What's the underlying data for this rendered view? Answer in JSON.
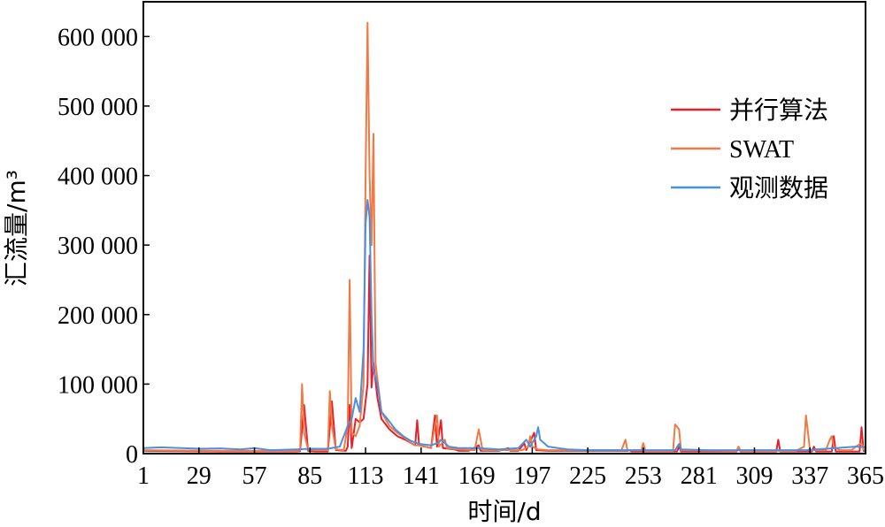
{
  "chart_data": {
    "type": "line",
    "title": "",
    "xlabel": "时间/d",
    "ylabel": "汇流量/m³",
    "xlim": [
      1,
      365
    ],
    "ylim": [
      0,
      650000
    ],
    "x_ticks": [
      1,
      29,
      57,
      85,
      113,
      141,
      169,
      197,
      225,
      253,
      281,
      309,
      337,
      365
    ],
    "x_tick_labels": [
      "1",
      "29",
      "57",
      "85",
      "113",
      "141",
      "169",
      "197",
      "225",
      "253",
      "281",
      "309",
      "337",
      "365"
    ],
    "y_ticks": [
      0,
      100000,
      200000,
      300000,
      400000,
      500000,
      600000
    ],
    "y_tick_labels": [
      "0",
      "100 000",
      "200 000",
      "300 000",
      "400 000",
      "500 000",
      "600 000"
    ],
    "grid": false,
    "legend_position": "top-right",
    "series": [
      {
        "name": "并行算法",
        "color": "#e8202a",
        "points": [
          [
            1,
            4000
          ],
          [
            20,
            3500
          ],
          [
            40,
            3000
          ],
          [
            60,
            3000
          ],
          [
            78,
            3000
          ],
          [
            80,
            3500
          ],
          [
            82,
            70000
          ],
          [
            84,
            4000
          ],
          [
            88,
            3000
          ],
          [
            94,
            3000
          ],
          [
            96,
            75000
          ],
          [
            98,
            5000
          ],
          [
            103,
            4000
          ],
          [
            104,
            10000
          ],
          [
            105,
            70000
          ],
          [
            106,
            8000
          ],
          [
            108,
            50000
          ],
          [
            110,
            45000
          ],
          [
            112,
            50000
          ],
          [
            114,
            100000
          ],
          [
            115,
            285000
          ],
          [
            116,
            95000
          ],
          [
            117,
            130000
          ],
          [
            119,
            80000
          ],
          [
            121,
            50000
          ],
          [
            125,
            35000
          ],
          [
            129,
            25000
          ],
          [
            133,
            20000
          ],
          [
            136,
            15000
          ],
          [
            138,
            12000
          ],
          [
            139,
            48000
          ],
          [
            140,
            12000
          ],
          [
            146,
            8000
          ],
          [
            148,
            55000
          ],
          [
            149,
            10000
          ],
          [
            151,
            48000
          ],
          [
            152,
            8000
          ],
          [
            158,
            6000
          ],
          [
            160,
            4000
          ],
          [
            165,
            4000
          ],
          [
            170,
            12000
          ],
          [
            171,
            4000
          ],
          [
            180,
            4000
          ],
          [
            185,
            8000
          ],
          [
            186,
            4000
          ],
          [
            190,
            4000
          ],
          [
            193,
            15000
          ],
          [
            194,
            5000
          ],
          [
            198,
            30000
          ],
          [
            199,
            5000
          ],
          [
            205,
            4000
          ],
          [
            245,
            4000
          ],
          [
            246,
            5000
          ],
          [
            247,
            3000
          ],
          [
            270,
            3000
          ],
          [
            271,
            10000
          ],
          [
            272,
            3000
          ],
          [
            300,
            3000
          ],
          [
            301,
            8000
          ],
          [
            302,
            3000
          ],
          [
            320,
            3000
          ],
          [
            321,
            20000
          ],
          [
            322,
            3000
          ],
          [
            338,
            3000
          ],
          [
            339,
            10000
          ],
          [
            340,
            3000
          ],
          [
            348,
            3000
          ],
          [
            349,
            25000
          ],
          [
            350,
            3000
          ],
          [
            362,
            3000
          ],
          [
            363,
            38000
          ],
          [
            364,
            4000
          ],
          [
            365,
            3000
          ]
        ]
      },
      {
        "name": "SWAT",
        "color": "#f07a45",
        "points": [
          [
            1,
            5000
          ],
          [
            20,
            4500
          ],
          [
            40,
            4000
          ],
          [
            60,
            4000
          ],
          [
            78,
            4000
          ],
          [
            80,
            5000
          ],
          [
            81,
            100000
          ],
          [
            82,
            30000
          ],
          [
            84,
            6000
          ],
          [
            88,
            5000
          ],
          [
            94,
            5000
          ],
          [
            95,
            90000
          ],
          [
            96,
            40000
          ],
          [
            98,
            6000
          ],
          [
            102,
            5000
          ],
          [
            104,
            40000
          ],
          [
            105,
            250000
          ],
          [
            106,
            30000
          ],
          [
            108,
            25000
          ],
          [
            110,
            40000
          ],
          [
            112,
            100000
          ],
          [
            113,
            400000
          ],
          [
            114,
            620000
          ],
          [
            115,
            400000
          ],
          [
            116,
            300000
          ],
          [
            117,
            460000
          ],
          [
            118,
            130000
          ],
          [
            121,
            60000
          ],
          [
            125,
            40000
          ],
          [
            129,
            30000
          ],
          [
            133,
            22000
          ],
          [
            136,
            15000
          ],
          [
            138,
            12000
          ],
          [
            140,
            12000
          ],
          [
            146,
            8000
          ],
          [
            148,
            40000
          ],
          [
            149,
            55000
          ],
          [
            150,
            10000
          ],
          [
            153,
            20000
          ],
          [
            154,
            8000
          ],
          [
            160,
            6000
          ],
          [
            168,
            5000
          ],
          [
            170,
            35000
          ],
          [
            171,
            20000
          ],
          [
            172,
            5000
          ],
          [
            180,
            5000
          ],
          [
            185,
            5000
          ],
          [
            192,
            5000
          ],
          [
            195,
            10000
          ],
          [
            196,
            25000
          ],
          [
            197,
            10000
          ],
          [
            200,
            6000
          ],
          [
            205,
            5000
          ],
          [
            242,
            5000
          ],
          [
            244,
            20000
          ],
          [
            245,
            5000
          ],
          [
            252,
            5000
          ],
          [
            253,
            15000
          ],
          [
            254,
            4000
          ],
          [
            268,
            4000
          ],
          [
            269,
            42000
          ],
          [
            271,
            35000
          ],
          [
            272,
            5000
          ],
          [
            300,
            4000
          ],
          [
            301,
            10000
          ],
          [
            302,
            4000
          ],
          [
            330,
            4000
          ],
          [
            334,
            10000
          ],
          [
            335,
            55000
          ],
          [
            336,
            30000
          ],
          [
            337,
            5000
          ],
          [
            345,
            5000
          ],
          [
            347,
            20000
          ],
          [
            348,
            25000
          ],
          [
            349,
            10000
          ],
          [
            352,
            5000
          ],
          [
            358,
            5000
          ],
          [
            360,
            10000
          ],
          [
            363,
            15000
          ],
          [
            364,
            6000
          ],
          [
            365,
            5000
          ]
        ]
      },
      {
        "name": "观测数据",
        "color": "#4a90e2",
        "points": [
          [
            1,
            8000
          ],
          [
            10,
            9000
          ],
          [
            20,
            8000
          ],
          [
            30,
            7000
          ],
          [
            40,
            7500
          ],
          [
            50,
            6000
          ],
          [
            57,
            8000
          ],
          [
            65,
            5000
          ],
          [
            78,
            6000
          ],
          [
            86,
            7000
          ],
          [
            94,
            7000
          ],
          [
            100,
            10000
          ],
          [
            104,
            40000
          ],
          [
            106,
            50000
          ],
          [
            108,
            80000
          ],
          [
            110,
            60000
          ],
          [
            112,
            150000
          ],
          [
            113,
            330000
          ],
          [
            114,
            365000
          ],
          [
            115,
            340000
          ],
          [
            116,
            200000
          ],
          [
            117,
            120000
          ],
          [
            119,
            100000
          ],
          [
            121,
            60000
          ],
          [
            124,
            50000
          ],
          [
            128,
            35000
          ],
          [
            132,
            25000
          ],
          [
            136,
            18000
          ],
          [
            140,
            14000
          ],
          [
            146,
            12000
          ],
          [
            150,
            16000
          ],
          [
            151,
            20000
          ],
          [
            155,
            10000
          ],
          [
            160,
            8000
          ],
          [
            170,
            8000
          ],
          [
            180,
            6000
          ],
          [
            190,
            8000
          ],
          [
            194,
            20000
          ],
          [
            196,
            10000
          ],
          [
            199,
            25000
          ],
          [
            200,
            38000
          ],
          [
            201,
            20000
          ],
          [
            205,
            10000
          ],
          [
            215,
            6000
          ],
          [
            225,
            5000
          ],
          [
            240,
            5000
          ],
          [
            253,
            5000
          ],
          [
            269,
            5000
          ],
          [
            271,
            14000
          ],
          [
            272,
            6000
          ],
          [
            285,
            5000
          ],
          [
            300,
            5000
          ],
          [
            310,
            5000
          ],
          [
            320,
            5000
          ],
          [
            335,
            5000
          ],
          [
            340,
            6000
          ],
          [
            350,
            8000
          ],
          [
            360,
            10000
          ],
          [
            365,
            9000
          ]
        ]
      }
    ]
  }
}
